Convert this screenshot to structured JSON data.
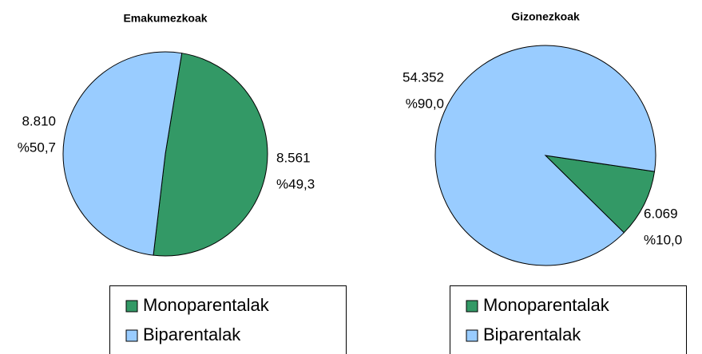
{
  "chart_data": [
    {
      "type": "pie",
      "title": "Emakumezkoak",
      "categories": [
        "Monoparentalak",
        "Biparentalak"
      ],
      "values": [
        8561,
        8810
      ],
      "value_labels": [
        "8.561",
        "8.810"
      ],
      "percentages": [
        49.3,
        50.7
      ],
      "percent_labels": [
        "%49,3",
        "%50,7"
      ],
      "colors": [
        "#339966",
        "#99ccff"
      ]
    },
    {
      "type": "pie",
      "title": "Gizonezkoak",
      "categories": [
        "Monoparentalak",
        "Biparentalak"
      ],
      "values": [
        6069,
        54352
      ],
      "value_labels": [
        "6.069",
        "54.352"
      ],
      "percentages": [
        10.0,
        90.0
      ],
      "percent_labels": [
        "%10,0",
        "%90,0"
      ],
      "colors": [
        "#339966",
        "#99ccff"
      ]
    }
  ]
}
